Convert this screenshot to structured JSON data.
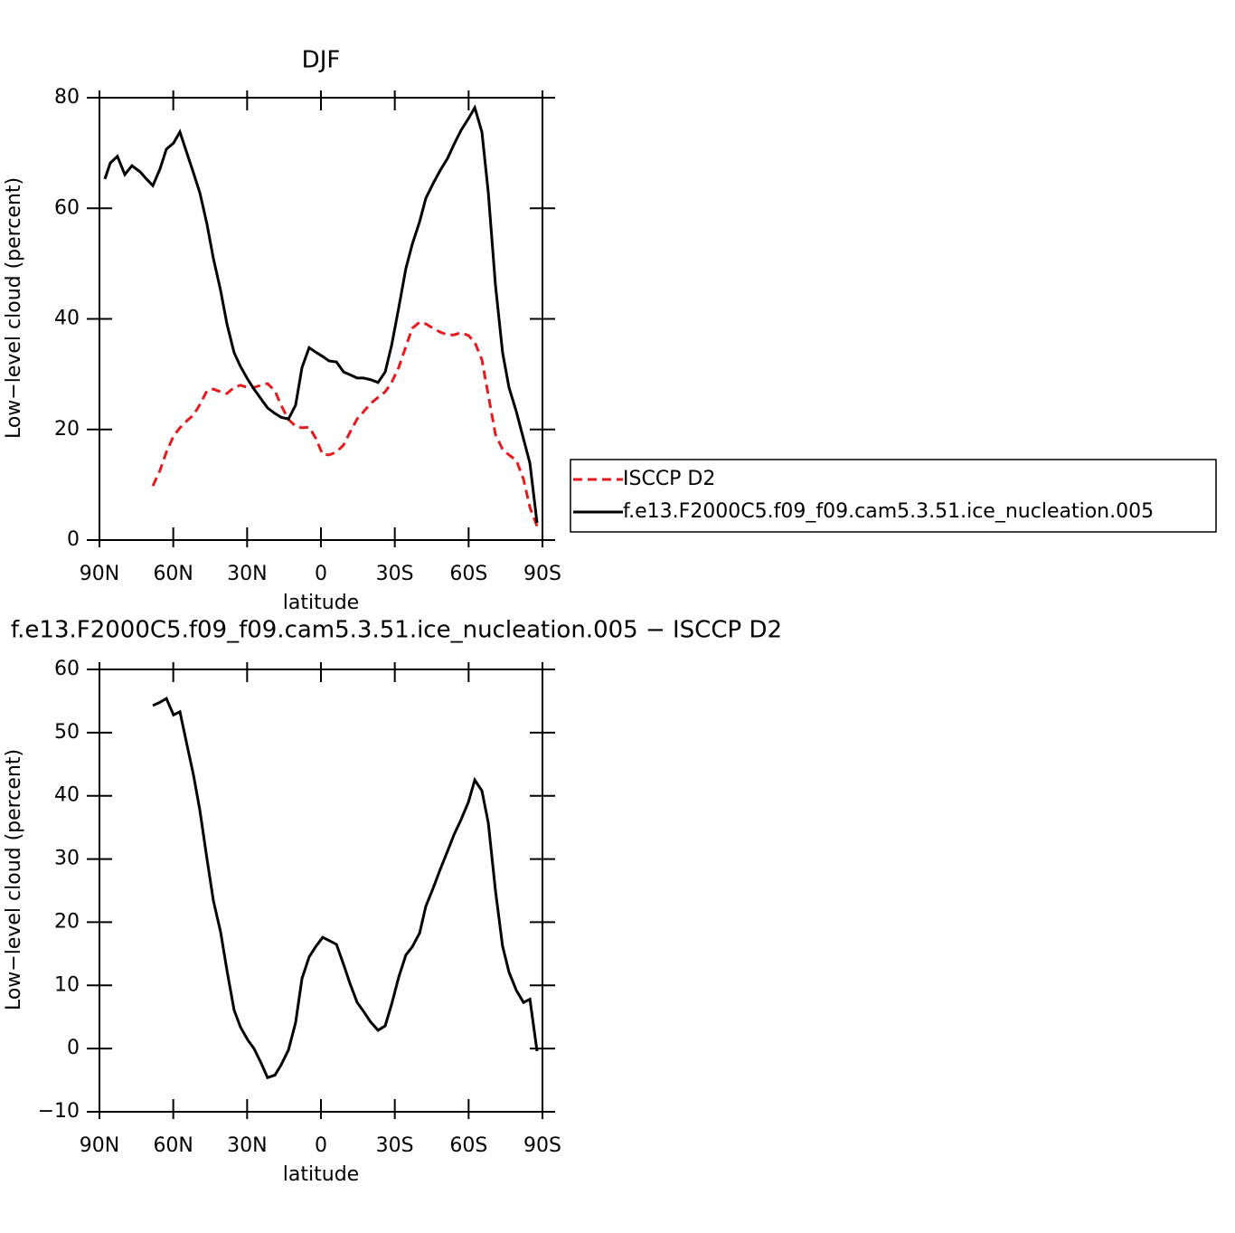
{
  "chart_data": [
    {
      "type": "line",
      "title": "DJF",
      "xlabel": "latitude",
      "ylabel": "Low−level cloud (percent)",
      "x": [
        87.8,
        85.6,
        82.7,
        79.7,
        76.8,
        73.5,
        70.9,
        68.3,
        65.4,
        62.8,
        59.9,
        57.3,
        54.4,
        51.8,
        49.2,
        46.3,
        43.7,
        40.8,
        38.2,
        35.3,
        32.7,
        29.8,
        27.2,
        24.3,
        21.7,
        18.7,
        16.2,
        13.2,
        10.3,
        7.7,
        4.8,
        2.2,
        -0.7,
        -3.3,
        -6.3,
        -9.2,
        -11.8,
        -14.7,
        -17.3,
        -20.2,
        -23.2,
        -26.1,
        -28.7,
        -31.6,
        -34.5,
        -37.1,
        -40.1,
        -42.6,
        -45.6,
        -48.5,
        -51.4,
        -54.0,
        -56.9,
        -59.9,
        -62.5,
        -65.4,
        -68.0,
        -70.9,
        -73.8,
        -76.4,
        -79.4,
        -82.3,
        -84.9,
        -87.8
      ],
      "series": [
        {
          "name": "ISCCP D2",
          "color": "#e41a1c",
          "style": "dashed",
          "values": [
            null,
            null,
            null,
            null,
            null,
            null,
            null,
            9.8,
            12.6,
            15.9,
            18.8,
            20.3,
            21.6,
            22.6,
            24.5,
            27.0,
            27.3,
            26.8,
            26.5,
            27.6,
            28.0,
            27.6,
            27.6,
            28.0,
            28.3,
            27.0,
            24.4,
            21.8,
            20.6,
            20.3,
            20.4,
            18.5,
            15.5,
            15.4,
            15.9,
            17.2,
            19.5,
            21.9,
            23.2,
            24.7,
            25.8,
            26.8,
            28.5,
            31.2,
            35.0,
            38.3,
            39.4,
            39.1,
            38.3,
            37.6,
            37.1,
            37.1,
            37.5,
            37.0,
            35.8,
            32.6,
            26.2,
            19.1,
            16.4,
            15.4,
            14.4,
            11.0,
            5.9,
            2.5
          ]
        },
        {
          "name": "f.e13.F2000C5.f09_f09.cam5.3.51.ice_nucleation.005",
          "color": "#000000",
          "style": "solid",
          "values": [
            65.3,
            68.2,
            69.4,
            66.1,
            67.7,
            66.6,
            65.3,
            64.1,
            67.1,
            70.7,
            71.8,
            73.8,
            69.9,
            66.4,
            62.8,
            57.1,
            50.9,
            45.2,
            39.1,
            33.9,
            31.4,
            29.1,
            27.3,
            25.5,
            23.9,
            22.9,
            22.2,
            21.9,
            24.4,
            31.2,
            34.8,
            34.0,
            33.2,
            32.4,
            32.2,
            30.4,
            29.9,
            29.3,
            29.3,
            29.0,
            28.5,
            30.4,
            35.2,
            42.0,
            49.1,
            53.5,
            57.6,
            61.8,
            64.5,
            66.9,
            69.0,
            71.5,
            74.1,
            76.2,
            78.2,
            73.8,
            62.8,
            46.1,
            33.9,
            27.6,
            23.2,
            18.3,
            13.9,
            3.1
          ]
        }
      ],
      "xlim": [
        90,
        -90
      ],
      "xticks": [
        {
          "value": 90,
          "label": "90N"
        },
        {
          "value": 60,
          "label": "60N"
        },
        {
          "value": 30,
          "label": "30N"
        },
        0,
        {
          "value": -30,
          "label": "30S"
        },
        {
          "value": -60,
          "label": "60S"
        },
        {
          "value": -90,
          "label": "90S"
        }
      ],
      "ylim": [
        0,
        80
      ],
      "yticks": [
        0,
        20,
        40,
        60,
        80
      ],
      "legend": "right"
    },
    {
      "type": "line",
      "title": "f.e13.F2000C5.f09_f09.cam5.3.51.ice_nucleation.005 − ISCCP D2",
      "xlabel": "latitude",
      "ylabel": "Low−level cloud (percent)",
      "x": [
        68.3,
        65.4,
        62.8,
        59.9,
        57.3,
        54.4,
        51.8,
        49.2,
        46.3,
        43.7,
        40.8,
        38.2,
        35.3,
        32.7,
        29.8,
        27.2,
        24.3,
        21.7,
        18.7,
        16.2,
        13.2,
        10.3,
        7.7,
        4.8,
        2.2,
        -0.7,
        -3.3,
        -6.3,
        -9.2,
        -11.8,
        -14.7,
        -17.3,
        -20.2,
        -23.2,
        -26.1,
        -28.7,
        -31.6,
        -34.5,
        -37.1,
        -40.1,
        -42.6,
        -45.6,
        -48.5,
        -51.4,
        -54.0,
        -56.9,
        -59.9,
        -62.5,
        -65.4,
        -68.0,
        -70.9,
        -73.8,
        -76.4,
        -79.4,
        -82.3,
        -84.9,
        -87.8
      ],
      "series": [
        {
          "color": "#000000",
          "style": "solid",
          "values": [
            54.3,
            54.8,
            55.4,
            52.8,
            53.3,
            48.0,
            43.3,
            37.7,
            30.0,
            23.4,
            18.5,
            12.4,
            6.1,
            3.4,
            1.4,
            0.0,
            -2.3,
            -4.6,
            -4.2,
            -2.6,
            -0.2,
            4.1,
            11.1,
            14.5,
            16.1,
            17.6,
            17.1,
            16.5,
            13.3,
            10.3,
            7.3,
            5.9,
            4.2,
            2.9,
            3.6,
            7.0,
            11.3,
            14.8,
            16.1,
            18.3,
            22.5,
            25.4,
            28.4,
            31.2,
            33.8,
            36.2,
            39.0,
            42.5,
            40.8,
            35.7,
            25.0,
            16.2,
            12.1,
            9.2,
            7.3,
            7.8,
            -0.4
          ]
        }
      ],
      "xlim": [
        90,
        -90
      ],
      "xticks": [
        {
          "value": 90,
          "label": "90N"
        },
        {
          "value": 60,
          "label": "60N"
        },
        {
          "value": 30,
          "label": "30N"
        },
        0,
        {
          "value": -30,
          "label": "30S"
        },
        {
          "value": -60,
          "label": "60S"
        },
        {
          "value": -90,
          "label": "90S"
        }
      ],
      "ylim": [
        -10,
        60
      ],
      "yticks": [
        {
          "value": -10,
          "label": "−10"
        },
        0,
        10,
        20,
        30,
        40,
        50,
        60
      ]
    }
  ]
}
